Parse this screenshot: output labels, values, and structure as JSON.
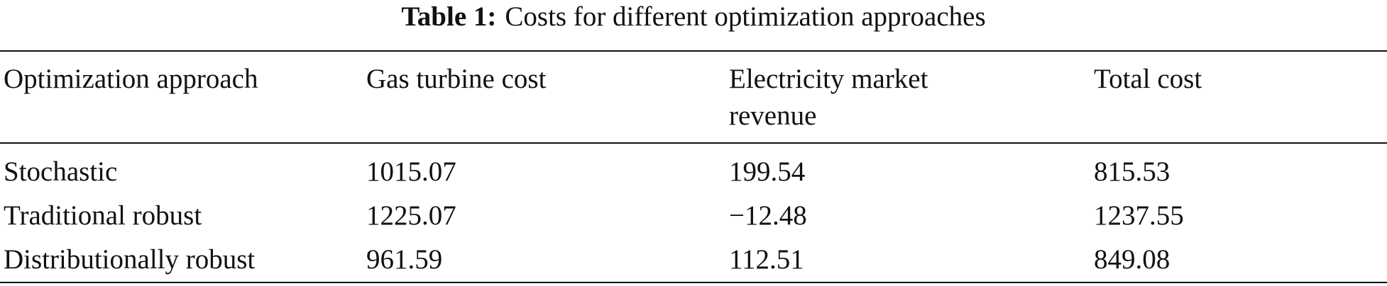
{
  "caption": {
    "label": "Table 1:",
    "text": "Costs for different optimization approaches"
  },
  "table": {
    "header": [
      "Optimization approach",
      "Gas turbine cost",
      "Electricity market revenue",
      "Total cost"
    ],
    "rows": [
      [
        "Stochastic",
        "1015.07",
        "199.54",
        "815.53"
      ],
      [
        "Traditional robust",
        "1225.07",
        "−12.48",
        "1237.55"
      ],
      [
        "Distributionally robust",
        "961.59",
        "112.51",
        "849.08"
      ]
    ]
  }
}
